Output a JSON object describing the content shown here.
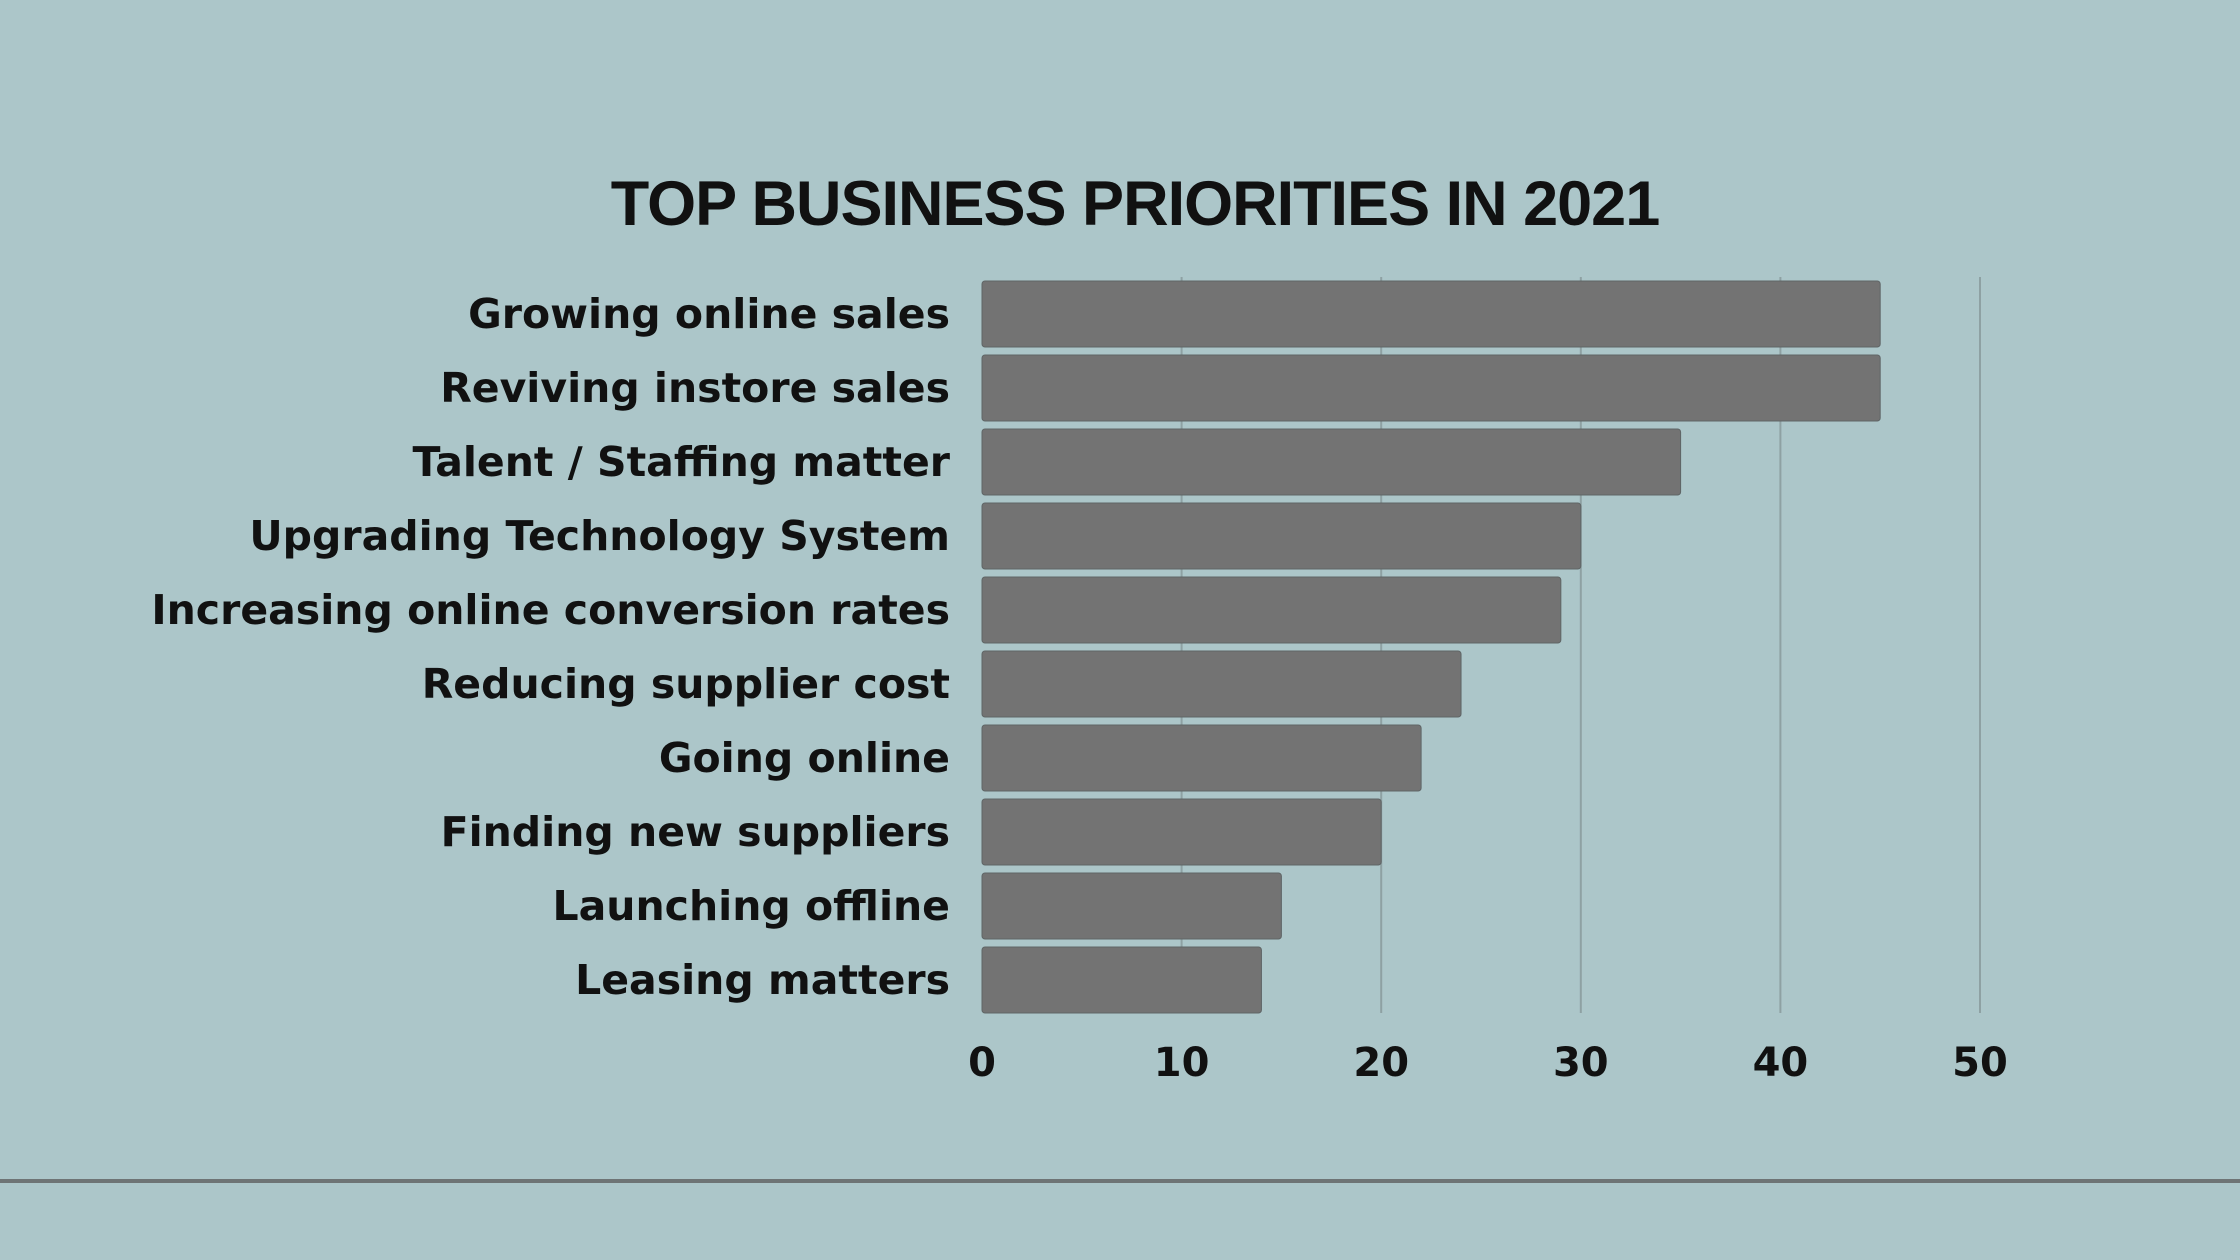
{
  "colors": {
    "background": "#acc6c9",
    "bar": "#737373",
    "bar_outline": "#5f6566",
    "grid": "#8ea1a3",
    "text": "#111111",
    "footer_rule": "#6e7475"
  },
  "chart_data": {
    "type": "bar",
    "orientation": "horizontal",
    "title": "TOP BUSINESS PRIORITIES IN 2021",
    "categories": [
      "Growing online sales",
      "Reviving instore sales",
      "Talent / Staffing matter",
      "Upgrading Technology System",
      "Increasing online conversion rates",
      "Reducing supplier cost",
      "Going online",
      "Finding new suppliers",
      "Launching offline",
      "Leasing matters"
    ],
    "values": [
      45,
      45,
      35,
      30,
      29,
      24,
      22,
      20,
      15,
      14
    ],
    "xlim": [
      0,
      50
    ],
    "x_ticks": [
      0,
      10,
      20,
      30,
      40,
      50
    ],
    "x_tick_labels": [
      "0",
      "10",
      "20",
      "30",
      "40",
      "50"
    ],
    "grid": "vertical",
    "legend": "none"
  }
}
